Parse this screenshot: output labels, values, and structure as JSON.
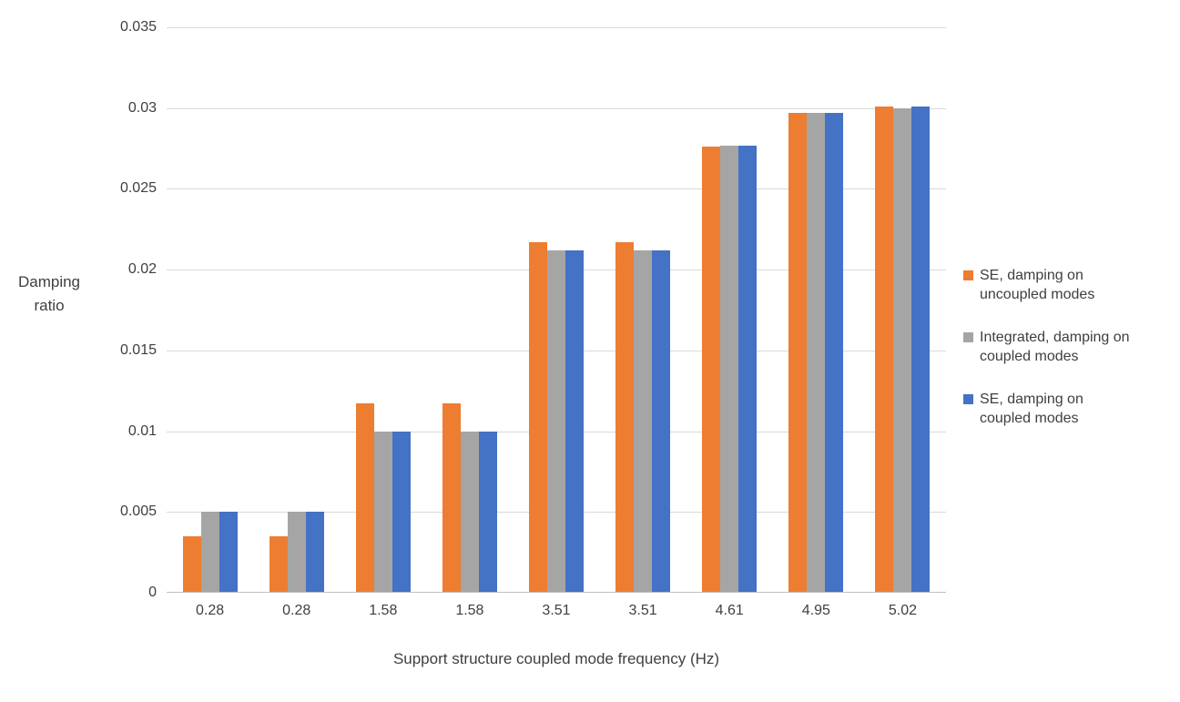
{
  "chart_data": {
    "type": "bar",
    "title": "",
    "xlabel": "Support structure coupled mode frequency (Hz)",
    "ylabel": "Damping ratio",
    "ylim": [
      0,
      0.035
    ],
    "ytick_step": 0.005,
    "yticks": [
      "0",
      "0.005",
      "0.01",
      "0.015",
      "0.02",
      "0.025",
      "0.03",
      "0.035"
    ],
    "grid": true,
    "legend_position": "right",
    "categories": [
      "0.28",
      "0.28",
      "1.58",
      "1.58",
      "3.51",
      "3.51",
      "4.61",
      "4.95",
      "5.02"
    ],
    "series": [
      {
        "name": "SE, damping on uncoupled modes",
        "color": "#ED7D31",
        "values": [
          0.0035,
          0.0035,
          0.0117,
          0.0117,
          0.0217,
          0.0217,
          0.0276,
          0.0297,
          0.0301
        ]
      },
      {
        "name": "Integrated, damping on coupled modes",
        "color": "#A5A5A5",
        "values": [
          0.005,
          0.005,
          0.01,
          0.01,
          0.0212,
          0.0212,
          0.0277,
          0.0297,
          0.03
        ]
      },
      {
        "name": "SE, damping on coupled modes",
        "color": "#4472C4",
        "values": [
          0.005,
          0.005,
          0.01,
          0.01,
          0.0212,
          0.0212,
          0.0277,
          0.0297,
          0.0301
        ]
      }
    ]
  }
}
